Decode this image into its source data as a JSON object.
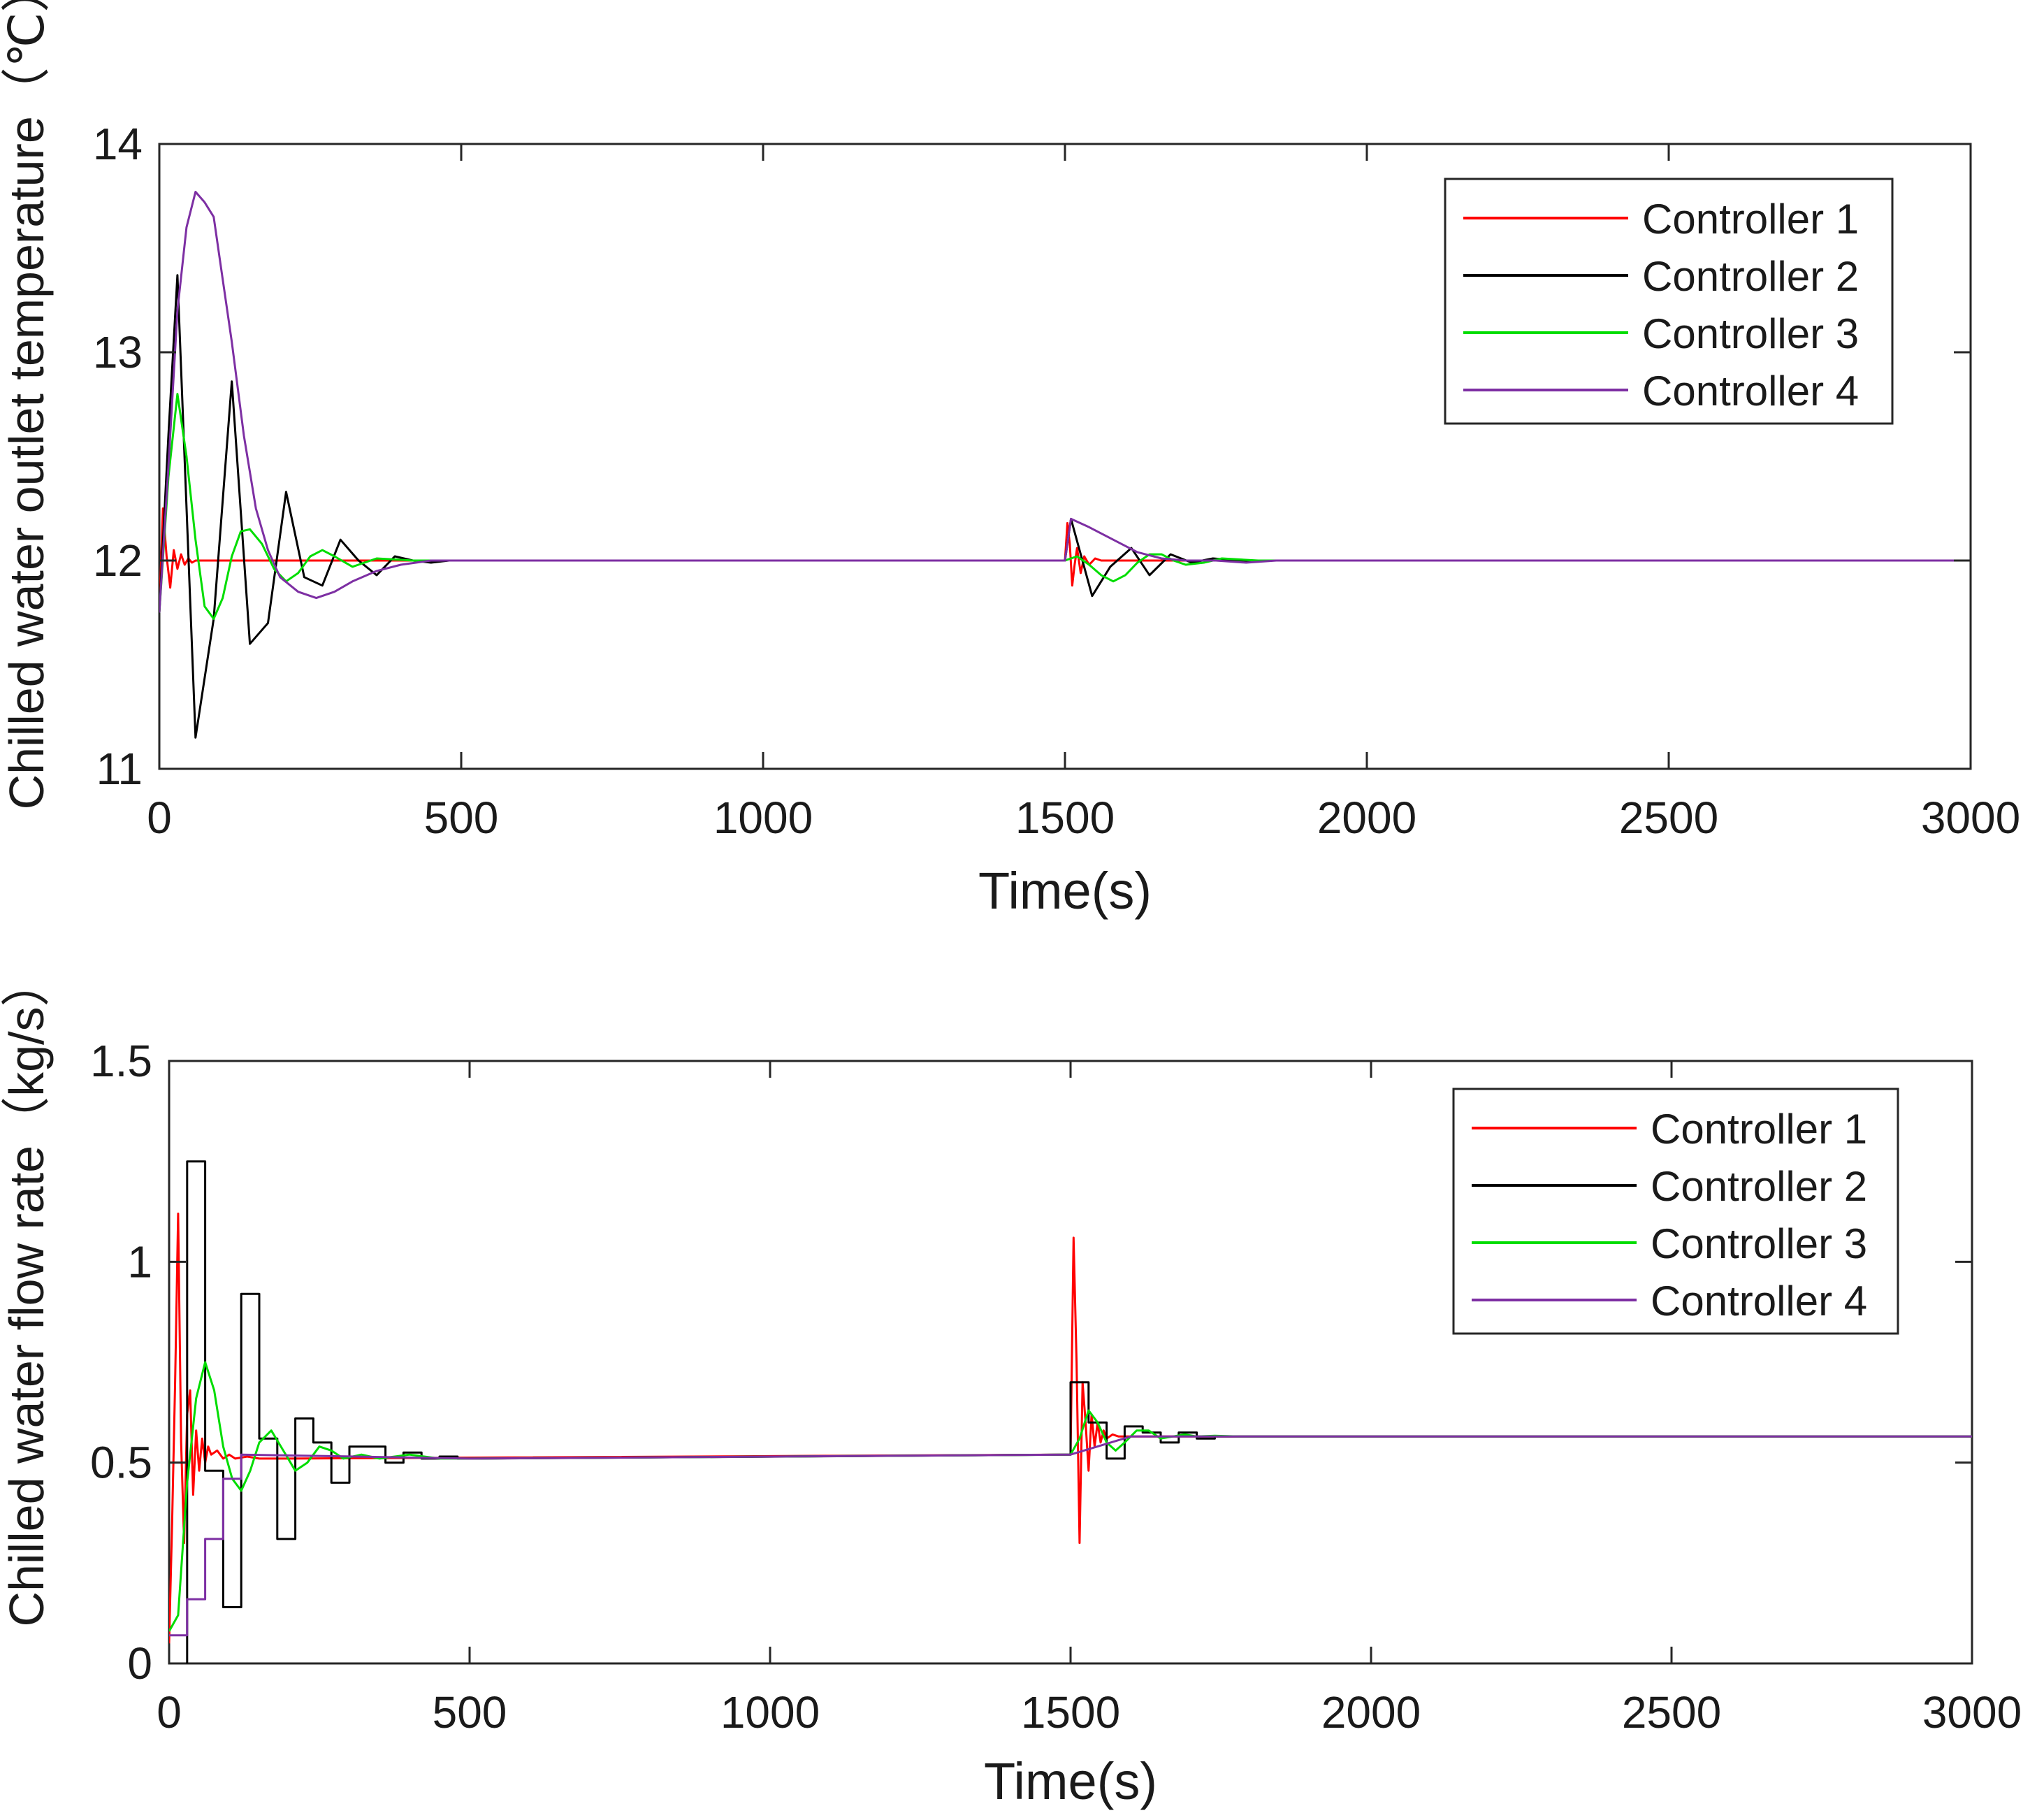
{
  "colors": {
    "controller_1": "#ff0000",
    "controller_2": "#000000",
    "controller_3": "#00dd00",
    "controller_4": "#7d2fa3",
    "axis": "#262626"
  },
  "chart_data": [
    {
      "type": "line",
      "title": "",
      "xlabel": "Time(s)",
      "ylabel": "Chilled water outlet temperature（℃）",
      "xlim": [
        0,
        3000
      ],
      "ylim": [
        11,
        14
      ],
      "xticks": [
        0,
        500,
        1000,
        1500,
        2000,
        2500,
        3000
      ],
      "yticks": [
        11,
        12,
        13,
        14
      ],
      "legend_position": "top-right",
      "series": [
        {
          "name": "Controller 1",
          "color": "#ff0000",
          "x": [
            0,
            6,
            12,
            18,
            24,
            30,
            36,
            42,
            48,
            54,
            60,
            70,
            80,
            100,
            1500,
            1504,
            1508,
            1512,
            1516,
            1520,
            1526,
            1532,
            1540,
            1550,
            1560,
            1580,
            1600,
            3000
          ],
          "y": [
            11.75,
            12.25,
            12.02,
            11.87,
            12.05,
            11.96,
            12.03,
            11.98,
            12.01,
            11.99,
            12.0,
            12.0,
            12.0,
            12.0,
            12.0,
            12.18,
            12.08,
            11.88,
            11.98,
            12.06,
            11.94,
            12.02,
            11.98,
            12.01,
            12.0,
            12.0,
            12.0,
            12.0
          ]
        },
        {
          "name": "Controller 2",
          "color": "#000000",
          "x": [
            0,
            15,
            30,
            60,
            90,
            120,
            150,
            180,
            210,
            240,
            270,
            300,
            330,
            360,
            390,
            420,
            450,
            480,
            520,
            560,
            1500,
            1510,
            1545,
            1575,
            1610,
            1640,
            1675,
            1710,
            1745,
            1790,
            3000
          ],
          "y": [
            11.75,
            12.6,
            13.37,
            11.15,
            11.72,
            12.86,
            11.6,
            11.7,
            12.33,
            11.92,
            11.88,
            12.1,
            12.0,
            11.93,
            12.02,
            12.0,
            11.99,
            12.0,
            12.0,
            12.0,
            12.0,
            12.2,
            11.83,
            11.97,
            12.06,
            11.93,
            12.03,
            11.99,
            12.01,
            12.0,
            12.0
          ]
        },
        {
          "name": "Controller 3",
          "color": "#00dd00",
          "x": [
            0,
            15,
            30,
            45,
            60,
            75,
            90,
            105,
            120,
            135,
            150,
            170,
            190,
            210,
            230,
            250,
            270,
            290,
            320,
            360,
            420,
            500,
            1500,
            1520,
            1540,
            1560,
            1580,
            1600,
            1620,
            1640,
            1660,
            1680,
            1700,
            1730,
            1760,
            1820,
            3000
          ],
          "y": [
            11.75,
            12.4,
            12.8,
            12.5,
            12.1,
            11.78,
            11.72,
            11.82,
            12.02,
            12.14,
            12.15,
            12.08,
            11.96,
            11.9,
            11.94,
            12.02,
            12.05,
            12.02,
            11.97,
            12.01,
            12.0,
            12.0,
            12.0,
            12.02,
            11.98,
            11.93,
            11.9,
            11.93,
            11.99,
            12.03,
            12.03,
            12.0,
            11.98,
            11.99,
            12.01,
            12.0,
            12.0
          ]
        },
        {
          "name": "Controller 4",
          "color": "#7d2fa3",
          "x": [
            0,
            15,
            30,
            45,
            60,
            75,
            90,
            105,
            120,
            140,
            160,
            180,
            200,
            230,
            260,
            290,
            320,
            360,
            400,
            450,
            500,
            1500,
            1510,
            1540,
            1580,
            1620,
            1660,
            1700,
            1750,
            1800,
            1850,
            3000
          ],
          "y": [
            11.75,
            12.45,
            13.2,
            13.6,
            13.77,
            13.72,
            13.65,
            13.35,
            13.05,
            12.6,
            12.25,
            12.05,
            11.92,
            11.85,
            11.82,
            11.85,
            11.9,
            11.95,
            11.98,
            12.0,
            12.0,
            12.0,
            12.2,
            12.16,
            12.1,
            12.04,
            12.01,
            12.0,
            12.0,
            11.99,
            12.0,
            12.0
          ]
        }
      ]
    },
    {
      "type": "line",
      "title": "",
      "xlabel": "Time(s)",
      "ylabel": "Chilled water flow rate（kg/s）",
      "xlim": [
        0,
        3000
      ],
      "ylim": [
        0,
        1.5
      ],
      "xticks": [
        0,
        500,
        1000,
        1500,
        2000,
        2500,
        3000
      ],
      "yticks": [
        0,
        0.5,
        1,
        1.5
      ],
      "legend_position": "top-right",
      "series": [
        {
          "name": "Controller 1",
          "color": "#ff0000",
          "x": [
            0,
            5,
            10,
            15,
            20,
            25,
            30,
            35,
            40,
            45,
            50,
            55,
            60,
            65,
            70,
            80,
            90,
            100,
            110,
            130,
            150,
            200,
            1500,
            1505,
            1510,
            1515,
            1520,
            1525,
            1530,
            1535,
            1540,
            1545,
            1550,
            1555,
            1560,
            1570,
            1580,
            1600,
            3000
          ],
          "y": [
            0.05,
            0.35,
            0.7,
            1.12,
            0.55,
            0.3,
            0.62,
            0.68,
            0.42,
            0.58,
            0.48,
            0.56,
            0.5,
            0.54,
            0.52,
            0.53,
            0.51,
            0.52,
            0.51,
            0.515,
            0.51,
            0.51,
            0.52,
            1.06,
            0.75,
            0.3,
            0.7,
            0.6,
            0.48,
            0.62,
            0.54,
            0.6,
            0.55,
            0.58,
            0.56,
            0.57,
            0.565,
            0.565,
            0.565
          ]
        },
        {
          "name": "Controller 2",
          "color": "#000000",
          "x": [
            0,
            15,
            15,
            30,
            30,
            60,
            60,
            90,
            90,
            120,
            120,
            150,
            150,
            180,
            180,
            210,
            210,
            240,
            240,
            270,
            270,
            300,
            300,
            330,
            330,
            360,
            360,
            390,
            390,
            420,
            420,
            450,
            450,
            480,
            480,
            520,
            1500,
            1500,
            1530,
            1530,
            1560,
            1560,
            1590,
            1590,
            1620,
            1620,
            1650,
            1650,
            1680,
            1680,
            1710,
            1710,
            1740,
            1740,
            1780,
            3000
          ],
          "y": [
            0.0,
            0.0,
            0.0,
            0.0,
            1.25,
            1.25,
            0.48,
            0.48,
            0.14,
            0.14,
            0.92,
            0.92,
            0.56,
            0.56,
            0.31,
            0.31,
            0.61,
            0.61,
            0.55,
            0.55,
            0.45,
            0.45,
            0.54,
            0.54,
            0.54,
            0.54,
            0.5,
            0.5,
            0.525,
            0.525,
            0.51,
            0.51,
            0.515,
            0.515,
            0.51,
            0.51,
            0.52,
            0.7,
            0.7,
            0.6,
            0.6,
            0.51,
            0.51,
            0.59,
            0.59,
            0.575,
            0.575,
            0.55,
            0.55,
            0.575,
            0.575,
            0.56,
            0.56,
            0.565,
            0.565,
            0.565
          ]
        },
        {
          "name": "Controller 3",
          "color": "#00dd00",
          "x": [
            0,
            15,
            30,
            45,
            60,
            75,
            90,
            105,
            120,
            135,
            150,
            170,
            190,
            210,
            230,
            250,
            270,
            290,
            320,
            350,
            400,
            450,
            500,
            1500,
            1515,
            1530,
            1545,
            1560,
            1575,
            1590,
            1610,
            1630,
            1650,
            1670,
            1690,
            1710,
            1740,
            1780,
            3000
          ],
          "y": [
            0.08,
            0.12,
            0.45,
            0.66,
            0.75,
            0.68,
            0.54,
            0.46,
            0.43,
            0.48,
            0.55,
            0.58,
            0.53,
            0.48,
            0.5,
            0.54,
            0.53,
            0.51,
            0.52,
            0.51,
            0.52,
            0.51,
            0.51,
            0.52,
            0.56,
            0.63,
            0.6,
            0.55,
            0.53,
            0.55,
            0.58,
            0.58,
            0.56,
            0.565,
            0.57,
            0.565,
            0.567,
            0.565,
            0.565
          ]
        },
        {
          "name": "Controller 4",
          "color": "#7d2fa3",
          "x": [
            0,
            30,
            30,
            60,
            60,
            90,
            90,
            120,
            120,
            500,
            1500,
            1600,
            3000
          ],
          "y": [
            0.07,
            0.07,
            0.16,
            0.16,
            0.31,
            0.31,
            0.46,
            0.46,
            0.52,
            0.51,
            0.52,
            0.565,
            0.565
          ]
        }
      ]
    }
  ]
}
